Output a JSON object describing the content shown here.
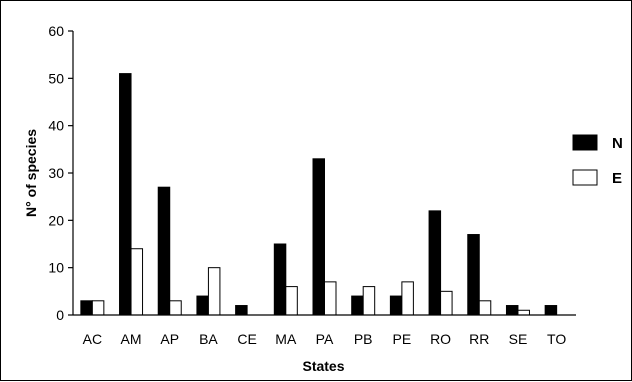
{
  "chart_data": {
    "type": "bar",
    "categories": [
      "AC",
      "AM",
      "AP",
      "BA",
      "CE",
      "MA",
      "PA",
      "PB",
      "PE",
      "RO",
      "RR",
      "SE",
      "TO"
    ],
    "series": [
      {
        "name": "N",
        "values": [
          3,
          51,
          27,
          4,
          2,
          15,
          33,
          4,
          4,
          22,
          17,
          2,
          2
        ],
        "color": "#000000"
      },
      {
        "name": "E",
        "values": [
          3,
          14,
          3,
          10,
          0,
          6,
          7,
          6,
          7,
          5,
          3,
          1,
          0
        ],
        "color": "#ffffff"
      }
    ],
    "yticks": [
      0,
      10,
      20,
      30,
      40,
      50,
      60
    ],
    "ylim": [
      0,
      60
    ],
    "xlabel": "States",
    "ylabel": "N° of species",
    "grid": false,
    "legend": "right"
  }
}
